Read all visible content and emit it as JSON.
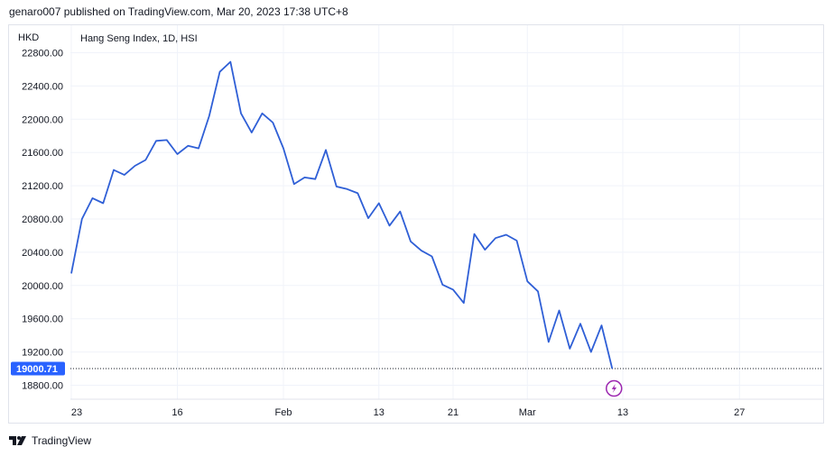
{
  "header": {
    "text": "genaro007 published on TradingView.com, Mar 20, 2023 17:38 UTC+8"
  },
  "footer": {
    "brand": "TradingView"
  },
  "colors": {
    "line": "#2f5fd6",
    "grid": "#f0f3fa",
    "axis": "#e0e3eb",
    "price_label_bg": "#2962ff",
    "flash_icon": "#9c27b0"
  },
  "chart_data": {
    "type": "line",
    "title": "Hang Seng Index, 1D, HSI",
    "currency_label": "HKD",
    "last_price_label": "19000.71",
    "grid": true,
    "ylim": [
      18700,
      22900
    ],
    "y_ticks": [
      "22800.00",
      "22400.00",
      "22000.00",
      "21600.00",
      "21200.00",
      "20800.00",
      "20400.00",
      "20000.00",
      "19600.00",
      "19200.00",
      "18800.00"
    ],
    "y_tick_values": [
      22800,
      22400,
      22000,
      21600,
      21200,
      20800,
      20400,
      20000,
      19600,
      19200,
      18800
    ],
    "x_ticks": [
      "23",
      "16",
      "Feb",
      "13",
      "21",
      "Mar",
      "13",
      "27"
    ],
    "x_tick_index": [
      0,
      10,
      20,
      29,
      36,
      43,
      52,
      63
    ],
    "x_count": 66,
    "series": [
      {
        "values": [
          20145,
          20800,
          21050,
          20990,
          21390,
          21330,
          21440,
          21510,
          21740,
          21750,
          21580,
          21680,
          21650,
          22040,
          22570,
          22690,
          22070,
          21840,
          22070,
          21960,
          21650,
          21220,
          21300,
          21280,
          21630,
          21190,
          21160,
          21110,
          20810,
          20990,
          20720,
          20890,
          20530,
          20420,
          20350,
          20010,
          19950,
          19790,
          20620,
          20430,
          20570,
          20610,
          20540,
          20050,
          19930,
          19320,
          19700,
          19240,
          19540,
          19200,
          19520,
          19000
        ]
      }
    ]
  }
}
